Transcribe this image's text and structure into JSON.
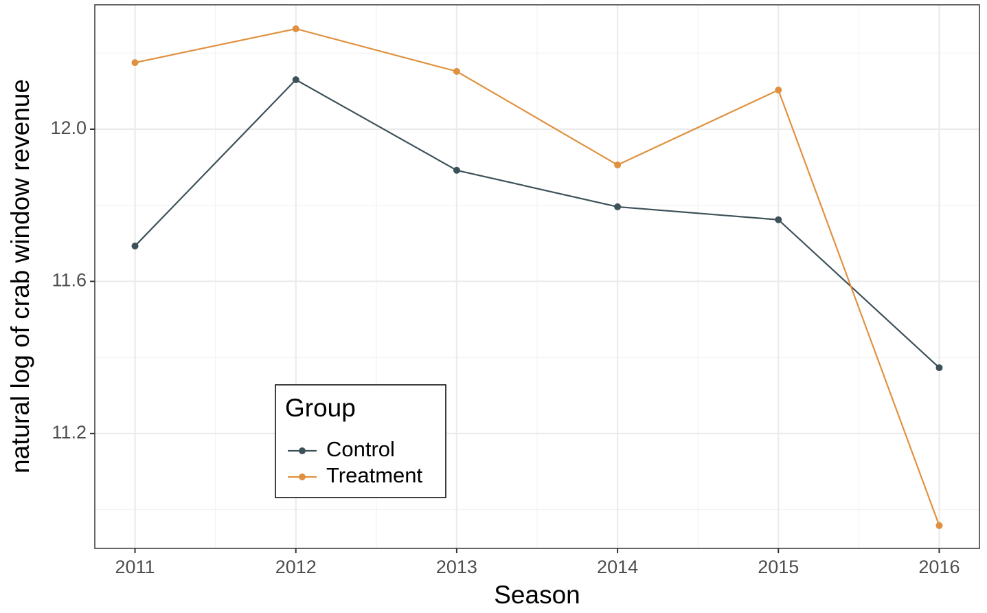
{
  "chart_data": {
    "type": "line",
    "x_label": "Season",
    "y_label": "natural log of crab window revenue",
    "x": [
      2011,
      2012,
      2013,
      2014,
      2015,
      2016
    ],
    "series": [
      {
        "name": "Control",
        "color": "#3d5159",
        "values": [
          11.693,
          12.13,
          11.892,
          11.796,
          11.762,
          11.373
        ]
      },
      {
        "name": "Treatment",
        "color": "#e0913f",
        "values": [
          12.175,
          12.264,
          12.152,
          11.906,
          12.103,
          10.958
        ]
      }
    ],
    "xlim": [
      2010.75,
      2016.25
    ],
    "xticks": [
      2011,
      2012,
      2013,
      2014,
      2015,
      2016
    ],
    "ylim": [
      10.898,
      12.327
    ],
    "yticks": [
      11.2,
      11.6,
      {
        "value": 12,
        "label": "12.0"
      }
    ],
    "grid": true,
    "legend_title": "Group",
    "legend_position": "bottom-left"
  }
}
